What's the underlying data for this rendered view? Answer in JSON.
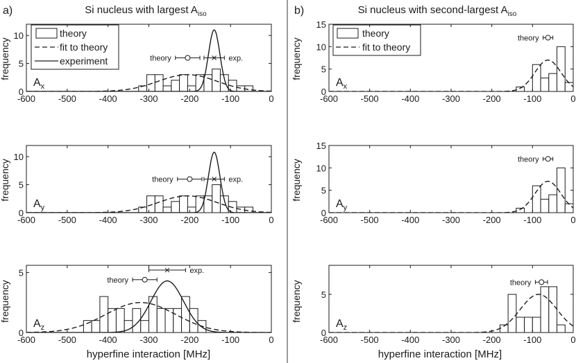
{
  "colors": {
    "background": "#ffffff",
    "ink": "#1a1a1a",
    "divider": "#9a9a9a"
  },
  "header": {
    "a_label": "a)",
    "b_label": "b)",
    "a_title": "Si nucleus with largest A",
    "a_title_sub": "iso",
    "b_title": "Si nucleus with second-largest A",
    "b_title_sub": "iso"
  },
  "legend_a": {
    "theory": "theory",
    "fit": "fit to theory",
    "experiment": "experiment"
  },
  "legend_b": {
    "theory": "theory",
    "fit": "fit to theory"
  },
  "axes": {
    "ylabel": "frequency",
    "xlabel": "hyperfine interaction [MHz]"
  },
  "chart_data": [
    {
      "id": "a-x",
      "type": "bar",
      "component": "A",
      "component_sub": "x",
      "xlim": [
        -600,
        0
      ],
      "ylim": [
        0,
        12
      ],
      "yticks": [
        0,
        5,
        10
      ],
      "xticks": [
        -600,
        -500,
        -400,
        -300,
        -200,
        -100,
        0
      ],
      "bins": {
        "start": -325,
        "width": 20
      },
      "counts": [
        1,
        3,
        3,
        1,
        2,
        3,
        1,
        3,
        3,
        4,
        3,
        2,
        1,
        1
      ],
      "fit": {
        "amp": 3.0,
        "mu": -205,
        "sigma": 72
      },
      "experiment": {
        "amp": 11.0,
        "mu": -140,
        "sigma": 14
      },
      "markers": {
        "theory": {
          "label": "theory",
          "center": -205,
          "err": 30,
          "y": 6
        },
        "exp": {
          "label": "exp.",
          "center": -140,
          "err": 25,
          "y": 6
        }
      }
    },
    {
      "id": "a-y",
      "type": "bar",
      "component": "A",
      "component_sub": "y",
      "xlim": [
        -600,
        0
      ],
      "ylim": [
        0,
        12
      ],
      "yticks": [
        0,
        5,
        10
      ],
      "xticks": [
        -600,
        -500,
        -400,
        -300,
        -200,
        -100,
        0
      ],
      "bins": {
        "start": -325,
        "width": 20
      },
      "counts": [
        1,
        3,
        3,
        1,
        2,
        3,
        1,
        3,
        3,
        5,
        3,
        2,
        1,
        1
      ],
      "fit": {
        "amp": 3.0,
        "mu": -205,
        "sigma": 72
      },
      "experiment": {
        "amp": 10.8,
        "mu": -140,
        "sigma": 14
      },
      "markers": {
        "theory": {
          "label": "theory",
          "center": -200,
          "err": 30,
          "y": 6
        },
        "exp": {
          "label": "exp.",
          "center": -140,
          "err": 25,
          "y": 6
        }
      }
    },
    {
      "id": "a-z",
      "type": "bar",
      "component": "A",
      "component_sub": "z",
      "xlim": [
        -600,
        0
      ],
      "ylim": [
        0,
        5.6
      ],
      "yticks": [
        0,
        5
      ],
      "xticks": [
        -600,
        -500,
        -400,
        -300,
        -200,
        -100,
        0
      ],
      "bins": {
        "start": -460,
        "width": 20
      },
      "counts": [
        1,
        1,
        3,
        2,
        2,
        1,
        2,
        1,
        3,
        2,
        2,
        2,
        3,
        2,
        1
      ],
      "fit": {
        "amp": 2.5,
        "mu": -320,
        "sigma": 85
      },
      "experiment": {
        "amp": 4.3,
        "mu": -255,
        "sigma": 40
      },
      "markers": {
        "theory": {
          "label": "theory",
          "center": -310,
          "err": 30,
          "y": 4.4
        },
        "exp": {
          "label": "exp.",
          "center": -255,
          "err": 45,
          "y": 5.2
        }
      }
    },
    {
      "id": "b-x",
      "type": "bar",
      "component": "A",
      "component_sub": "x",
      "xlim": [
        -600,
        0
      ],
      "ylim": [
        0,
        15
      ],
      "yticks": [
        0,
        5,
        10,
        15
      ],
      "xticks": [
        -600,
        -500,
        -400,
        -300,
        -200,
        -100,
        0
      ],
      "bins": {
        "start": -140,
        "width": 20
      },
      "counts": [
        1,
        0,
        6,
        3,
        4,
        10,
        2
      ],
      "fit": {
        "amp": 7.0,
        "mu": -62,
        "sigma": 32
      },
      "markers": {
        "theory": {
          "label": "theory",
          "center": -62,
          "err": 12,
          "y": 12
        }
      }
    },
    {
      "id": "b-y",
      "type": "bar",
      "component": "A",
      "component_sub": "y",
      "xlim": [
        -600,
        0
      ],
      "ylim": [
        0,
        15
      ],
      "yticks": [
        0,
        5,
        10,
        15
      ],
      "xticks": [
        -600,
        -500,
        -400,
        -300,
        -200,
        -100,
        0
      ],
      "bins": {
        "start": -140,
        "width": 20
      },
      "counts": [
        1,
        0,
        6,
        3,
        4,
        10,
        2
      ],
      "fit": {
        "amp": 7.0,
        "mu": -62,
        "sigma": 32
      },
      "markers": {
        "theory": {
          "label": "theory",
          "center": -62,
          "err": 12,
          "y": 12
        }
      }
    },
    {
      "id": "b-z",
      "type": "bar",
      "component": "A",
      "component_sub": "z",
      "xlim": [
        -600,
        0
      ],
      "ylim": [
        0,
        8.8
      ],
      "yticks": [
        0,
        5
      ],
      "xticks": [
        -600,
        -500,
        -400,
        -300,
        -200,
        -100,
        0
      ],
      "bins": {
        "start": -180,
        "width": 20
      },
      "counts": [
        1,
        5,
        2,
        2,
        2,
        6,
        6,
        1
      ],
      "fit": {
        "amp": 5.0,
        "mu": -85,
        "sigma": 45
      },
      "markers": {
        "theory": {
          "label": "theory",
          "center": -78,
          "err": 15,
          "y": 6.6
        }
      }
    }
  ]
}
